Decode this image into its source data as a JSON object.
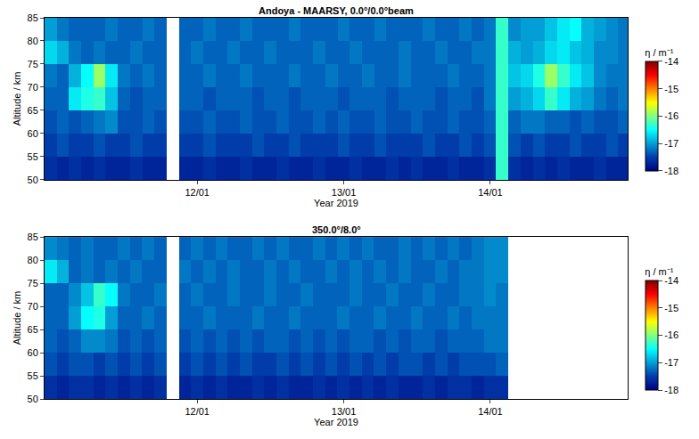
{
  "chart_data": [
    {
      "type": "heatmap",
      "title": "Andoya - MAARSY, 0.0°/0.0°beam",
      "xlabel": "Year 2019",
      "ylabel": "Altitude / km",
      "xlim": [
        "2019-01-10 23:00",
        "2019-01-14 22:30"
      ],
      "xticks": [
        {
          "value": "2019-01-12 00:00",
          "label": "12/01"
        },
        {
          "value": "2019-01-13 00:00",
          "label": "13/01"
        },
        {
          "value": "2019-01-14 00:00",
          "label": "14/01"
        }
      ],
      "ylim": [
        50,
        85
      ],
      "yticks": [
        50,
        55,
        60,
        65,
        70,
        75,
        80,
        85
      ],
      "colorbar": {
        "title": "η / m⁻¹",
        "range": [
          -18,
          -14
        ],
        "ticks": [
          -14,
          -15,
          -16,
          -17,
          -18
        ]
      },
      "x": [
        "2019-01-11 00:00",
        "2019-01-11 02:00",
        "2019-01-11 04:00",
        "2019-01-11 06:00",
        "2019-01-11 08:00",
        "2019-01-11 10:00",
        "2019-01-11 12:00",
        "2019-01-11 14:00",
        "2019-01-11 16:00",
        "2019-01-11 18:00",
        "2019-01-11 20:00",
        "2019-01-11 22:00",
        "2019-01-12 00:00",
        "2019-01-12 02:00",
        "2019-01-12 04:00",
        "2019-01-12 06:00",
        "2019-01-12 08:00",
        "2019-01-12 10:00",
        "2019-01-12 12:00",
        "2019-01-12 14:00",
        "2019-01-12 16:00",
        "2019-01-12 18:00",
        "2019-01-12 20:00",
        "2019-01-12 22:00",
        "2019-01-13 00:00",
        "2019-01-13 02:00",
        "2019-01-13 04:00",
        "2019-01-13 06:00",
        "2019-01-13 08:00",
        "2019-01-13 10:00",
        "2019-01-13 12:00",
        "2019-01-13 14:00",
        "2019-01-13 16:00",
        "2019-01-13 18:00",
        "2019-01-13 20:00",
        "2019-01-13 22:00",
        "2019-01-14 00:00",
        "2019-01-14 02:00",
        "2019-01-14 04:00",
        "2019-01-14 06:00",
        "2019-01-14 08:00",
        "2019-01-14 10:00",
        "2019-01-14 12:00",
        "2019-01-14 14:00",
        "2019-01-14 16:00",
        "2019-01-14 18:00",
        "2019-01-14 20:00",
        "2019-01-14 22:00"
      ],
      "y": [
        52.5,
        57.5,
        62.5,
        67.5,
        72.5,
        77.5,
        82.5
      ],
      "z": [
        [
          -17.6,
          -17.7,
          -17.6,
          -17.7,
          -17.6,
          -17.7,
          -17.7,
          -17.6,
          -17.7,
          -17.7,
          null,
          -17.7,
          -17.7,
          -17.6,
          -17.7,
          -17.7,
          -17.6,
          -17.7,
          -17.7,
          -17.6,
          -17.7,
          -17.7,
          -17.6,
          -17.7,
          -17.7,
          -17.6,
          -17.7,
          -17.7,
          -17.6,
          -17.7,
          -17.6,
          -17.7,
          -17.7,
          -17.6,
          -17.7,
          -17.7,
          -17.6,
          -16.3,
          -17.6,
          -17.7,
          -17.6,
          -17.7,
          -17.6,
          -17.7,
          -17.7,
          -17.6,
          -17.7,
          -17.7
        ],
        [
          -17.5,
          -17.4,
          -17.5,
          -17.5,
          -17.4,
          -17.5,
          -17.5,
          -17.4,
          -17.5,
          -17.5,
          null,
          -17.5,
          -17.5,
          -17.4,
          -17.5,
          -17.5,
          -17.5,
          -17.4,
          -17.5,
          -17.5,
          -17.4,
          -17.5,
          -17.5,
          -17.5,
          -17.4,
          -17.5,
          -17.5,
          -17.4,
          -17.5,
          -17.5,
          -17.5,
          -17.4,
          -17.5,
          -17.5,
          -17.4,
          -17.5,
          -17.4,
          -16.3,
          -17.4,
          -17.5,
          -17.4,
          -17.5,
          -17.5,
          -17.4,
          -17.5,
          -17.5,
          -17.4,
          -17.5
        ],
        [
          -17.4,
          -17.3,
          -17.4,
          -17.3,
          -17.2,
          -17.1,
          -17.4,
          -17.4,
          -17.3,
          -17.4,
          null,
          -17.4,
          -17.4,
          -17.3,
          -17.4,
          -17.4,
          -17.3,
          -17.4,
          -17.4,
          -17.3,
          -17.4,
          -17.4,
          -17.3,
          -17.4,
          -17.3,
          -17.4,
          -17.4,
          -17.3,
          -17.4,
          -17.4,
          -17.3,
          -17.4,
          -17.4,
          -17.3,
          -17.4,
          -17.4,
          -17.3,
          -16.3,
          -17.3,
          -17.2,
          -17.2,
          -17.3,
          -17.3,
          -17.4,
          -17.3,
          -17.4,
          -17.4,
          -17.3
        ],
        [
          -17.3,
          -17.3,
          -16.6,
          -16.4,
          -16.3,
          -16.8,
          -17.3,
          -17.4,
          -17.3,
          -17.3,
          null,
          -17.3,
          -17.3,
          -17.4,
          -17.3,
          -17.3,
          -17.3,
          -17.4,
          -17.3,
          -17.3,
          -17.4,
          -17.3,
          -17.3,
          -17.3,
          -17.4,
          -17.3,
          -17.3,
          -17.3,
          -17.4,
          -17.3,
          -17.3,
          -17.3,
          -17.4,
          -17.3,
          -17.3,
          -17.4,
          -17.2,
          -16.3,
          -17.0,
          -16.9,
          -16.7,
          -16.3,
          -16.6,
          -16.9,
          -17.0,
          -17.2,
          -17.3,
          -17.2
        ],
        [
          -17.2,
          -17.3,
          -16.9,
          -16.5,
          -15.9,
          -16.6,
          -17.2,
          -17.3,
          -17.2,
          -17.3,
          null,
          -17.3,
          -17.3,
          -17.2,
          -17.3,
          -17.3,
          -17.2,
          -17.3,
          -17.3,
          -17.3,
          -17.2,
          -17.3,
          -17.3,
          -17.2,
          -17.3,
          -17.3,
          -17.2,
          -17.3,
          -17.3,
          -17.2,
          -17.3,
          -17.3,
          -17.3,
          -17.2,
          -17.3,
          -17.3,
          -17.2,
          -16.3,
          -16.8,
          -16.7,
          -16.4,
          -15.9,
          -16.3,
          -16.6,
          -16.8,
          -17.1,
          -17.2,
          -17.2
        ],
        [
          -16.7,
          -16.9,
          -17.2,
          -17.3,
          -17.2,
          -17.3,
          -17.3,
          -17.2,
          -17.3,
          -17.3,
          null,
          -17.3,
          -17.2,
          -17.3,
          -17.3,
          -17.2,
          -17.3,
          -17.3,
          -17.2,
          -17.3,
          -17.3,
          -17.3,
          -17.2,
          -17.3,
          -17.3,
          -17.2,
          -17.3,
          -17.3,
          -17.3,
          -17.2,
          -17.3,
          -17.3,
          -17.2,
          -17.3,
          -17.3,
          -17.2,
          -17.2,
          -16.3,
          -16.9,
          -17.0,
          -16.9,
          -16.7,
          -16.6,
          -16.8,
          -16.9,
          -17.1,
          -17.1,
          -17.2
        ],
        [
          -17.0,
          -17.2,
          -17.3,
          -17.3,
          -17.3,
          -17.2,
          -17.3,
          -17.3,
          -17.2,
          -17.3,
          null,
          -17.3,
          -17.3,
          -17.2,
          -17.3,
          -17.3,
          -17.2,
          -17.3,
          -17.3,
          -17.3,
          -17.2,
          -17.3,
          -17.3,
          -17.3,
          -17.2,
          -17.3,
          -17.3,
          -17.2,
          -17.3,
          -17.3,
          -17.3,
          -17.2,
          -17.3,
          -17.3,
          -17.2,
          -17.3,
          -17.2,
          -16.3,
          -17.1,
          -17.0,
          -17.0,
          -16.8,
          -16.6,
          -16.5,
          -16.9,
          -17.0,
          -17.1,
          -17.2
        ]
      ]
    },
    {
      "type": "heatmap",
      "title": "350.0°/8.0°",
      "xlabel": "Year 2019",
      "ylabel": "Altitude / km",
      "xlim": [
        "2019-01-10 23:00",
        "2019-01-14 22:30"
      ],
      "xticks": [
        {
          "value": "2019-01-12 00:00",
          "label": "12/01"
        },
        {
          "value": "2019-01-13 00:00",
          "label": "13/01"
        },
        {
          "value": "2019-01-14 00:00",
          "label": "14/01"
        }
      ],
      "ylim": [
        50,
        85
      ],
      "yticks": [
        50,
        55,
        60,
        65,
        70,
        75,
        80,
        85
      ],
      "colorbar": {
        "title": "η / m⁻¹",
        "range": [
          -18,
          -14
        ],
        "ticks": [
          -14,
          -15,
          -16,
          -17,
          -18
        ]
      },
      "x": [
        "2019-01-11 00:00",
        "2019-01-11 02:00",
        "2019-01-11 04:00",
        "2019-01-11 06:00",
        "2019-01-11 08:00",
        "2019-01-11 10:00",
        "2019-01-11 12:00",
        "2019-01-11 14:00",
        "2019-01-11 16:00",
        "2019-01-11 18:00",
        "2019-01-11 20:00",
        "2019-01-11 22:00",
        "2019-01-12 00:00",
        "2019-01-12 02:00",
        "2019-01-12 04:00",
        "2019-01-12 06:00",
        "2019-01-12 08:00",
        "2019-01-12 10:00",
        "2019-01-12 12:00",
        "2019-01-12 14:00",
        "2019-01-12 16:00",
        "2019-01-12 18:00",
        "2019-01-12 20:00",
        "2019-01-12 22:00",
        "2019-01-13 00:00",
        "2019-01-13 02:00",
        "2019-01-13 04:00",
        "2019-01-13 06:00",
        "2019-01-13 08:00",
        "2019-01-13 10:00",
        "2019-01-13 12:00",
        "2019-01-13 14:00",
        "2019-01-13 16:00",
        "2019-01-13 18:00",
        "2019-01-13 20:00",
        "2019-01-13 22:00",
        "2019-01-14 00:00",
        "2019-01-14 02:00"
      ],
      "y": [
        52.5,
        57.5,
        62.5,
        67.5,
        72.5,
        77.5,
        82.5
      ],
      "z": [
        [
          -17.6,
          -17.7,
          -17.6,
          -17.6,
          -17.7,
          -17.6,
          -17.7,
          -17.6,
          -17.7,
          -17.6,
          null,
          -17.7,
          -17.6,
          -17.7,
          -17.6,
          -17.7,
          -17.7,
          -17.6,
          -17.7,
          -17.6,
          -17.7,
          -17.7,
          -17.6,
          -17.7,
          -17.6,
          -17.7,
          -17.6,
          -17.7,
          -17.6,
          -17.7,
          -17.7,
          -17.6,
          -17.7,
          -17.6,
          -17.6,
          -17.7,
          -17.6,
          -17.6
        ],
        [
          -17.4,
          -17.5,
          -17.4,
          -17.4,
          -17.5,
          -17.4,
          -17.5,
          -17.4,
          -17.5,
          -17.4,
          null,
          -17.5,
          -17.4,
          -17.5,
          -17.4,
          -17.5,
          -17.4,
          -17.5,
          -17.5,
          -17.4,
          -17.5,
          -17.4,
          -17.5,
          -17.4,
          -17.5,
          -17.4,
          -17.5,
          -17.4,
          -17.5,
          -17.4,
          -17.4,
          -17.5,
          -17.4,
          -17.5,
          -17.4,
          -17.4,
          -17.4,
          -17.3
        ],
        [
          -17.3,
          -17.4,
          -17.3,
          -17.1,
          -17.1,
          -17.2,
          -17.4,
          -17.3,
          -17.4,
          -17.3,
          null,
          -17.4,
          -17.3,
          -17.4,
          -17.3,
          -17.4,
          -17.3,
          -17.4,
          -17.3,
          -17.3,
          -17.4,
          -17.3,
          -17.4,
          -17.3,
          -17.4,
          -17.3,
          -17.3,
          -17.4,
          -17.3,
          -17.4,
          -17.3,
          -17.3,
          -17.4,
          -17.3,
          -17.3,
          -17.3,
          -17.2,
          -17.2
        ],
        [
          -17.3,
          -17.3,
          -17.0,
          -16.5,
          -16.4,
          -17.0,
          -17.3,
          -17.3,
          -17.2,
          -17.3,
          null,
          -17.3,
          -17.3,
          -17.2,
          -17.3,
          -17.3,
          -17.3,
          -17.2,
          -17.3,
          -17.3,
          -17.2,
          -17.3,
          -17.3,
          -17.3,
          -17.2,
          -17.3,
          -17.3,
          -17.2,
          -17.3,
          -17.3,
          -17.2,
          -17.3,
          -17.3,
          -17.2,
          -17.3,
          -17.2,
          -17.2,
          -17.2
        ],
        [
          -17.3,
          -17.3,
          -17.1,
          -16.8,
          -16.3,
          -16.5,
          -17.2,
          -17.3,
          -17.3,
          -17.2,
          null,
          -17.3,
          -17.2,
          -17.3,
          -17.3,
          -17.2,
          -17.3,
          -17.3,
          -17.2,
          -17.3,
          -17.3,
          -17.2,
          -17.3,
          -17.3,
          -17.3,
          -17.2,
          -17.3,
          -17.3,
          -17.2,
          -17.3,
          -17.3,
          -17.2,
          -17.3,
          -17.3,
          -17.2,
          -17.2,
          -17.1,
          -17.2
        ],
        [
          -16.6,
          -16.9,
          -17.3,
          -17.2,
          -17.3,
          -17.2,
          -17.3,
          -17.2,
          -17.3,
          -17.3,
          null,
          -17.2,
          -17.3,
          -17.2,
          -17.3,
          -17.2,
          -17.3,
          -17.3,
          -17.2,
          -17.3,
          -17.2,
          -17.3,
          -17.3,
          -17.2,
          -17.3,
          -17.2,
          -17.3,
          -17.2,
          -17.3,
          -17.2,
          -17.3,
          -17.3,
          -17.2,
          -17.3,
          -17.2,
          -17.2,
          -17.1,
          -17.1
        ],
        [
          -17.1,
          -17.2,
          -17.3,
          -17.2,
          -17.3,
          -17.3,
          -17.2,
          -17.3,
          -17.2,
          -17.3,
          null,
          -17.3,
          -17.2,
          -17.3,
          -17.2,
          -17.3,
          -17.3,
          -17.2,
          -17.3,
          -17.2,
          -17.3,
          -17.3,
          -17.2,
          -17.3,
          -17.2,
          -17.3,
          -17.2,
          -17.3,
          -17.3,
          -17.2,
          -17.3,
          -17.2,
          -17.3,
          -17.2,
          -17.3,
          -17.2,
          -17.1,
          -17.1
        ]
      ]
    }
  ]
}
